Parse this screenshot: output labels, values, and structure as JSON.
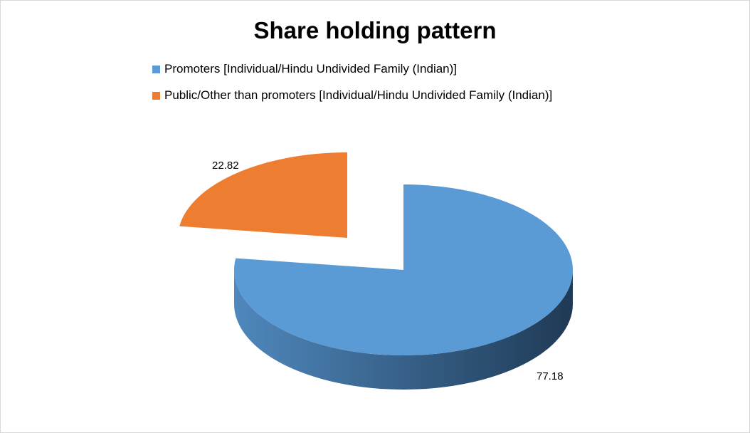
{
  "chart_data": {
    "type": "pie",
    "title": "Share holding pattern",
    "style": "3d-exploded",
    "legend_position": "top-left",
    "slices": [
      {
        "label": "Promoters [Individual/Hindu Undivided Family (Indian)]",
        "value": 77.18,
        "display_value": "77.18",
        "color": "#5b9bd5",
        "side_color": "#2e5575"
      },
      {
        "label": "Public/Other than promoters [Individual/Hindu Undivided Family (Indian)]",
        "value": 22.82,
        "display_value": "22.82",
        "color": "#ed7d31",
        "side_color": "#5e2f11"
      }
    ]
  }
}
